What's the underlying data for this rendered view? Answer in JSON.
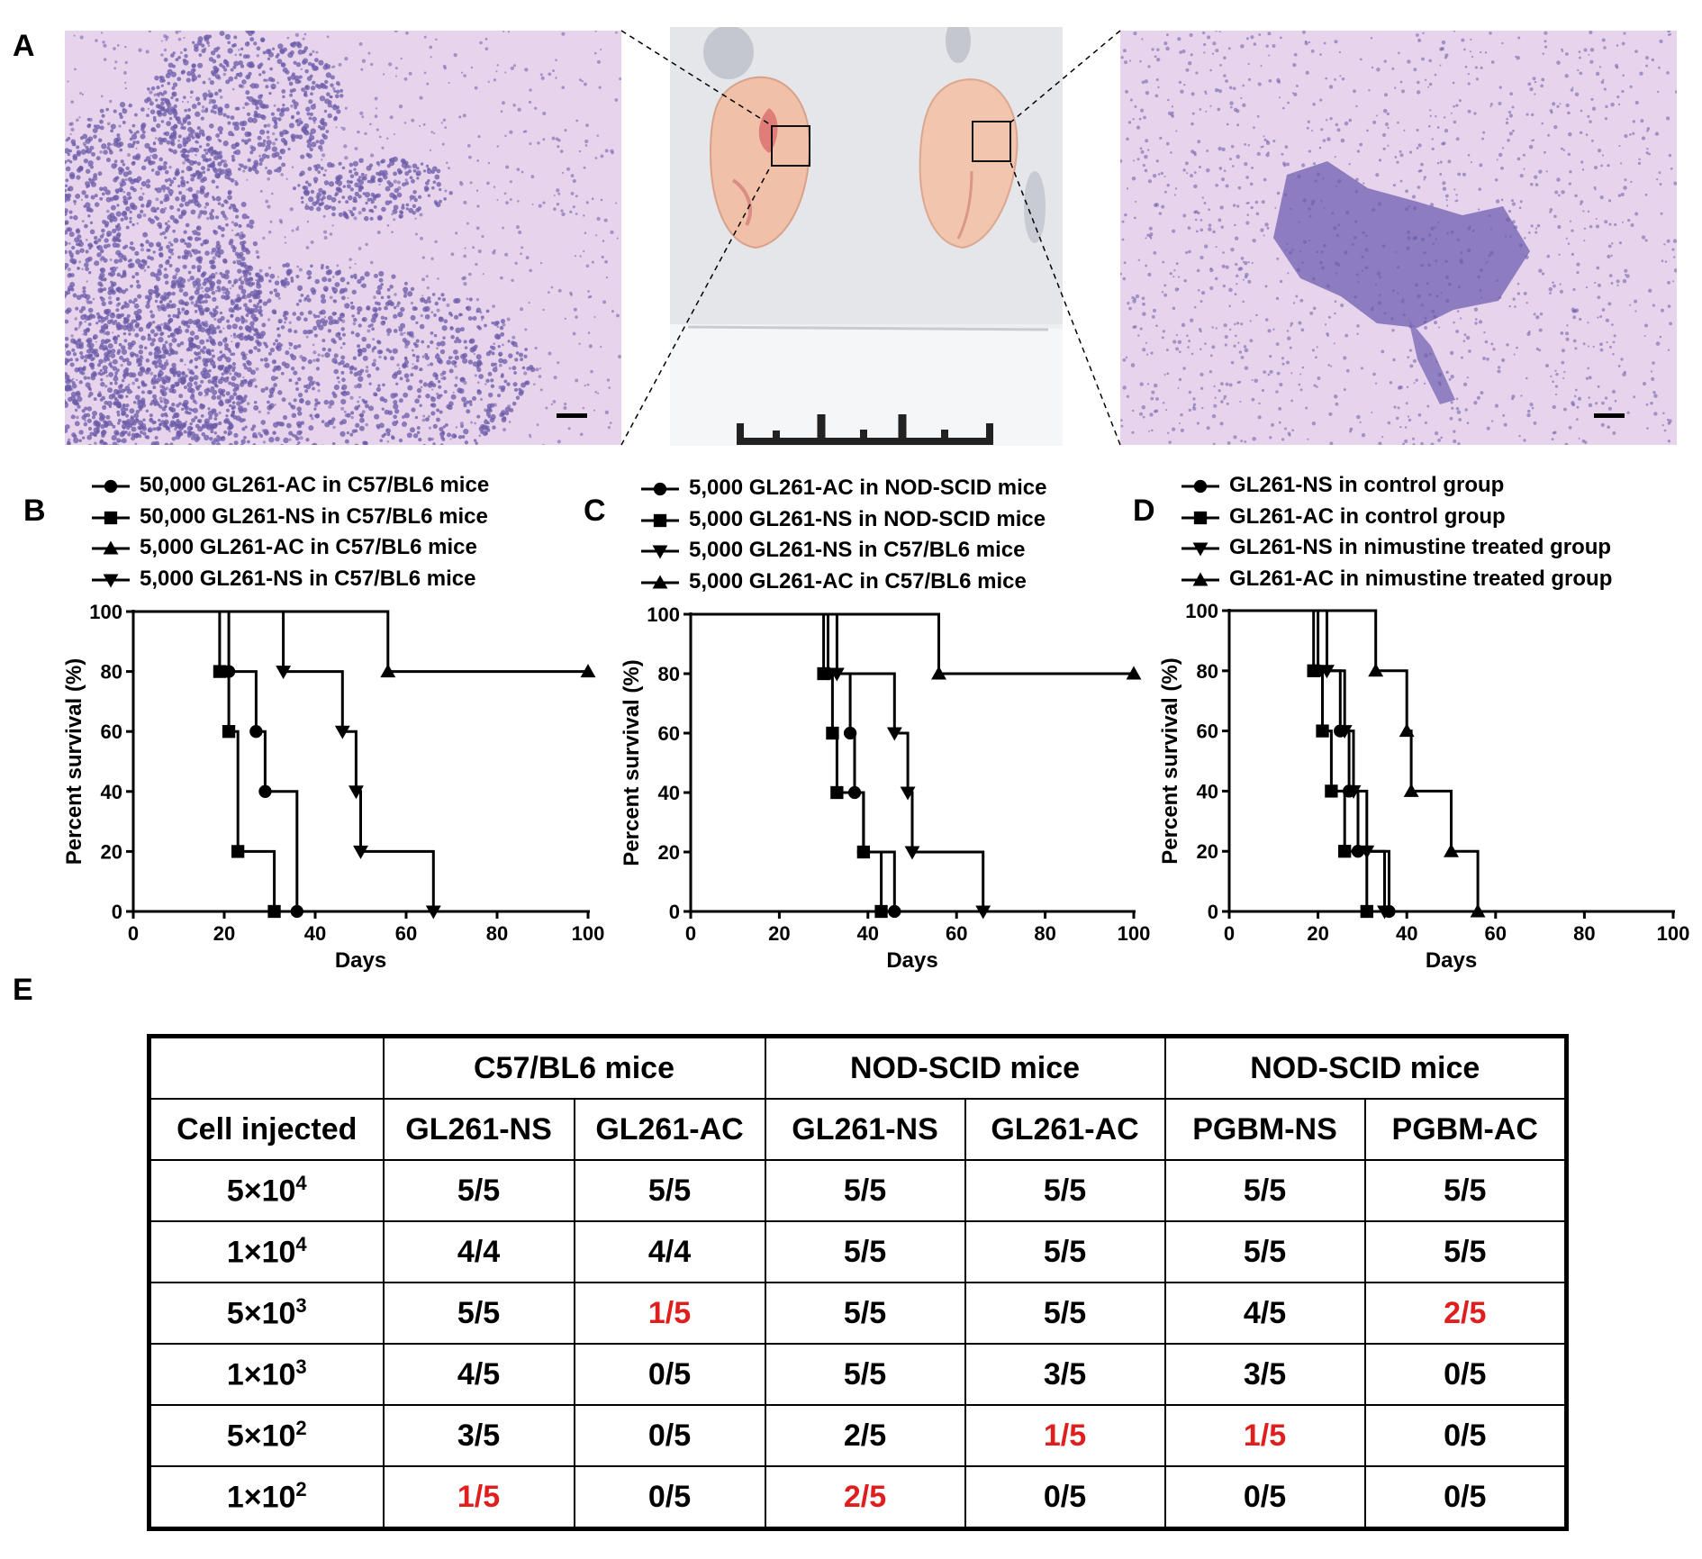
{
  "panel_labels": {
    "A": "A",
    "B": "B",
    "C": "C",
    "D": "D",
    "E": "E"
  },
  "colors": {
    "tissue_bg": "#e7d4ec",
    "cell_stain": "#6b5ba8",
    "photo_bg": "#ecedf0",
    "brain": "#f0c3ac",
    "highlight_red": "#e01e1e"
  },
  "chart_data": [
    {
      "type": "line",
      "panel": "B",
      "xlabel": "Days",
      "ylabel": "Percent survival (%)",
      "xlim": [
        0,
        100
      ],
      "ylim": [
        0,
        100
      ],
      "xticks": [
        0,
        20,
        40,
        60,
        80,
        100
      ],
      "yticks": [
        0,
        20,
        40,
        60,
        80,
        100
      ],
      "series": [
        {
          "name": "50,000 GL261-AC in C57/BL6 mice",
          "marker": "circle",
          "points": [
            [
              0,
              100
            ],
            [
              21,
              100
            ],
            [
              21,
              80
            ],
            [
              27,
              80
            ],
            [
              27,
              60
            ],
            [
              29,
              60
            ],
            [
              29,
              40
            ],
            [
              36,
              40
            ],
            [
              36,
              0
            ]
          ]
        },
        {
          "name": "50,000 GL261-NS in C57/BL6 mice",
          "marker": "square",
          "points": [
            [
              0,
              100
            ],
            [
              19,
              100
            ],
            [
              19,
              80
            ],
            [
              21,
              80
            ],
            [
              21,
              60
            ],
            [
              23,
              60
            ],
            [
              23,
              20
            ],
            [
              31,
              20
            ],
            [
              31,
              0
            ]
          ]
        },
        {
          "name": "5,000 GL261-AC in C57/BL6 mice",
          "marker": "triangle-up",
          "points": [
            [
              0,
              100
            ],
            [
              56,
              100
            ],
            [
              56,
              80
            ],
            [
              100,
              80
            ]
          ]
        },
        {
          "name": "5,000 GL261-NS in C57/BL6 mice",
          "marker": "triangle-down",
          "points": [
            [
              0,
              100
            ],
            [
              33,
              100
            ],
            [
              33,
              80
            ],
            [
              46,
              80
            ],
            [
              46,
              60
            ],
            [
              49,
              60
            ],
            [
              49,
              40
            ],
            [
              50,
              40
            ],
            [
              50,
              20
            ],
            [
              66,
              20
            ],
            [
              66,
              0
            ]
          ]
        }
      ]
    },
    {
      "type": "line",
      "panel": "C",
      "xlabel": "Days",
      "ylabel": "Percent survival (%)",
      "xlim": [
        0,
        100
      ],
      "ylim": [
        0,
        100
      ],
      "xticks": [
        0,
        20,
        40,
        60,
        80,
        100
      ],
      "yticks": [
        0,
        20,
        40,
        60,
        80,
        100
      ],
      "series": [
        {
          "name": "5,000 GL261-AC in NOD-SCID mice",
          "marker": "circle",
          "points": [
            [
              0,
              100
            ],
            [
              31,
              100
            ],
            [
              31,
              80
            ],
            [
              36,
              80
            ],
            [
              36,
              60
            ],
            [
              37,
              60
            ],
            [
              37,
              40
            ],
            [
              39,
              40
            ],
            [
              39,
              20
            ],
            [
              46,
              20
            ],
            [
              46,
              0
            ]
          ]
        },
        {
          "name": "5,000 GL261-NS in NOD-SCID mice",
          "marker": "square",
          "points": [
            [
              0,
              100
            ],
            [
              30,
              100
            ],
            [
              30,
              80
            ],
            [
              32,
              80
            ],
            [
              32,
              60
            ],
            [
              33,
              60
            ],
            [
              33,
              40
            ],
            [
              39,
              40
            ],
            [
              39,
              20
            ],
            [
              43,
              20
            ],
            [
              43,
              0
            ]
          ]
        },
        {
          "name": "5,000 GL261-NS in C57/BL6 mice",
          "marker": "triangle-down",
          "points": [
            [
              0,
              100
            ],
            [
              33,
              100
            ],
            [
              33,
              80
            ],
            [
              46,
              80
            ],
            [
              46,
              60
            ],
            [
              49,
              60
            ],
            [
              49,
              40
            ],
            [
              50,
              40
            ],
            [
              50,
              20
            ],
            [
              66,
              20
            ],
            [
              66,
              0
            ]
          ]
        },
        {
          "name": "5,000 GL261-AC in C57/BL6 mice",
          "marker": "triangle-up",
          "points": [
            [
              0,
              100
            ],
            [
              56,
              100
            ],
            [
              56,
              80
            ],
            [
              100,
              80
            ]
          ]
        }
      ]
    },
    {
      "type": "line",
      "panel": "D",
      "xlabel": "Days",
      "ylabel": "Percent survival (%)",
      "xlim": [
        0,
        100
      ],
      "ylim": [
        0,
        100
      ],
      "xticks": [
        0,
        20,
        40,
        60,
        80,
        100
      ],
      "yticks": [
        0,
        20,
        40,
        60,
        80,
        100
      ],
      "series": [
        {
          "name": "GL261-NS in control group",
          "marker": "circle",
          "points": [
            [
              0,
              100
            ],
            [
              20,
              100
            ],
            [
              20,
              80
            ],
            [
              25,
              80
            ],
            [
              25,
              60
            ],
            [
              27,
              60
            ],
            [
              27,
              40
            ],
            [
              29,
              40
            ],
            [
              29,
              20
            ],
            [
              36,
              20
            ],
            [
              36,
              0
            ]
          ]
        },
        {
          "name": "GL261-AC in control group",
          "marker": "square",
          "points": [
            [
              0,
              100
            ],
            [
              19,
              100
            ],
            [
              19,
              80
            ],
            [
              21,
              80
            ],
            [
              21,
              60
            ],
            [
              23,
              60
            ],
            [
              23,
              40
            ],
            [
              26,
              40
            ],
            [
              26,
              20
            ],
            [
              31,
              20
            ],
            [
              31,
              0
            ]
          ]
        },
        {
          "name": "GL261-NS in nimustine treated group",
          "marker": "triangle-down",
          "points": [
            [
              0,
              100
            ],
            [
              22,
              100
            ],
            [
              22,
              80
            ],
            [
              26,
              80
            ],
            [
              26,
              60
            ],
            [
              28,
              60
            ],
            [
              28,
              40
            ],
            [
              31,
              40
            ],
            [
              31,
              20
            ],
            [
              35,
              20
            ],
            [
              35,
              0
            ]
          ]
        },
        {
          "name": "GL261-AC in nimustine treated group",
          "marker": "triangle-up",
          "points": [
            [
              0,
              100
            ],
            [
              33,
              100
            ],
            [
              33,
              80
            ],
            [
              40,
              80
            ],
            [
              40,
              60
            ],
            [
              41,
              60
            ],
            [
              41,
              40
            ],
            [
              50,
              40
            ],
            [
              50,
              20
            ],
            [
              56,
              20
            ],
            [
              56,
              0
            ]
          ]
        }
      ]
    },
    {
      "type": "table",
      "panel": "E",
      "header_groups": [
        "C57/BL6 mice",
        "NOD-SCID mice",
        "NOD-SCID mice"
      ],
      "columns": [
        "Cell injected",
        "GL261-NS",
        "GL261-AC",
        "GL261-NS",
        "GL261-AC",
        "PGBM-NS",
        "PGBM-AC"
      ],
      "rows": [
        {
          "base": "5×10",
          "exp": "4",
          "values": [
            "5/5",
            "5/5",
            "5/5",
            "5/5",
            "5/5",
            "5/5"
          ],
          "red": []
        },
        {
          "base": "1×10",
          "exp": "4",
          "values": [
            "4/4",
            "4/4",
            "5/5",
            "5/5",
            "5/5",
            "5/5"
          ],
          "red": []
        },
        {
          "base": "5×10",
          "exp": "3",
          "values": [
            "5/5",
            "1/5",
            "5/5",
            "5/5",
            "4/5",
            "2/5"
          ],
          "red": [
            1,
            5
          ]
        },
        {
          "base": "1×10",
          "exp": "3",
          "values": [
            "4/5",
            "0/5",
            "5/5",
            "3/5",
            "3/5",
            "0/5"
          ],
          "red": []
        },
        {
          "base": "5×10",
          "exp": "2",
          "values": [
            "3/5",
            "0/5",
            "2/5",
            "1/5",
            "1/5",
            "0/5"
          ],
          "red": [
            3,
            4
          ]
        },
        {
          "base": "1×10",
          "exp": "2",
          "values": [
            "1/5",
            "0/5",
            "2/5",
            "0/5",
            "0/5",
            "0/5"
          ],
          "red": [
            0,
            2
          ]
        }
      ]
    }
  ]
}
